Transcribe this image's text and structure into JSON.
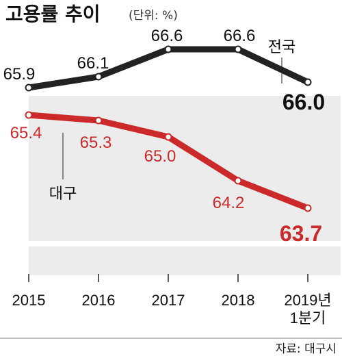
{
  "title": "고용률 추이",
  "unit": "(단위: %)",
  "source": "자료: 대구시",
  "colors": {
    "national": "#222222",
    "daegu": "#cc2a2a",
    "panel": "#ececec"
  },
  "chart_data": {
    "type": "line",
    "categories": [
      "2015",
      "2016",
      "2017",
      "2018",
      "2019년 1분기"
    ],
    "category_lines": [
      [
        "2015"
      ],
      [
        "2016"
      ],
      [
        "2017"
      ],
      [
        "2018"
      ],
      [
        "2019년",
        "1분기"
      ]
    ],
    "series": [
      {
        "name": "전국",
        "values": [
          65.9,
          66.1,
          66.6,
          66.6,
          66.0
        ],
        "labels": [
          "65.9",
          "66.1",
          "66.6",
          "66.6",
          "66.0"
        ]
      },
      {
        "name": "대구",
        "values": [
          65.4,
          65.3,
          65.0,
          64.2,
          63.7
        ],
        "labels": [
          "65.4",
          "65.3",
          "65.0",
          "64.2",
          "63.7"
        ]
      }
    ],
    "ylim": [
      63.0,
      67.0
    ],
    "grid": false
  }
}
